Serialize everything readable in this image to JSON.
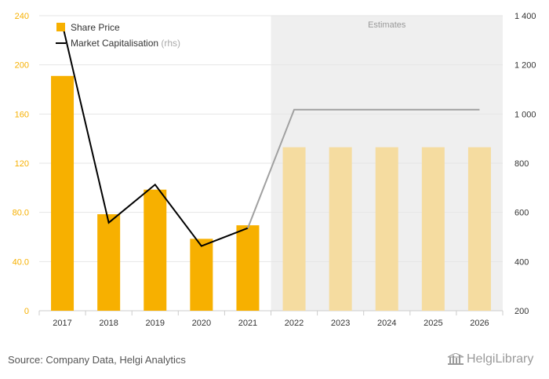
{
  "chart_data": {
    "type": "bar",
    "categories": [
      "2017",
      "2018",
      "2019",
      "2020",
      "2021",
      "2022",
      "2023",
      "2024",
      "2025",
      "2026"
    ],
    "estimate_band_label": "Estimates",
    "estimate_from": "2022",
    "series": [
      {
        "name": "Share Price",
        "kind": "bar",
        "axis": "left",
        "values": [
          191,
          78.5,
          98.5,
          58.5,
          69.5,
          133,
          133,
          133,
          133,
          133
        ],
        "color": "#f7b000",
        "estimate_color": "#f5dca0"
      },
      {
        "name": "Market Capitalisation",
        "unit": "(rhs)",
        "kind": "line",
        "axis": "right",
        "values": [
          1365,
          558,
          713,
          463,
          536,
          1018,
          1018,
          1018,
          1018,
          1018
        ],
        "color": "#000000",
        "estimate_color": "#a0a0a0"
      }
    ],
    "y_left": {
      "ticks": [
        "0",
        "40.0",
        "80.0",
        "120",
        "160",
        "200",
        "240"
      ],
      "min": 0,
      "max": 240
    },
    "y_right": {
      "ticks": [
        "200",
        "400",
        "600",
        "800",
        "1 000",
        "1 200",
        "1 400"
      ],
      "min": 200,
      "max": 1400
    },
    "grid": true,
    "legend_position": "top-left"
  },
  "footer": {
    "source": "Source: Company Data, Helgi Analytics",
    "logo_text": "HelgiLibrary"
  },
  "colors": {
    "tick_left": "#f7b000",
    "tick_right": "#333333",
    "grid": "#e6e6e6",
    "estimate_band": "#efefef"
  }
}
